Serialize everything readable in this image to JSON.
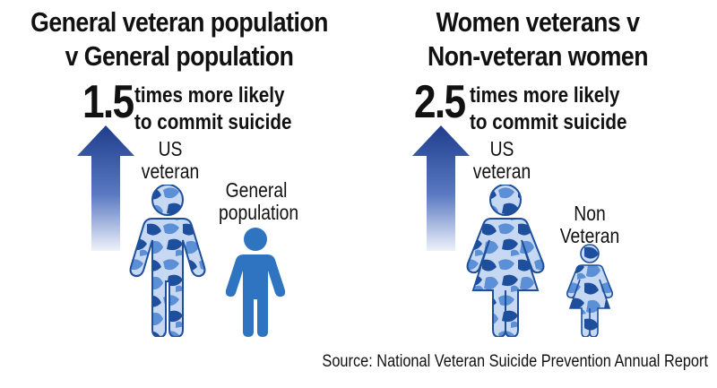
{
  "left_panel": {
    "title_line1": "General veteran population",
    "title_line2": "v General population",
    "multiplier": "1.5",
    "likely_line1": "times more likely",
    "likely_line2": "to commit suicide",
    "figure1_label_line1": "US",
    "figure1_label_line2": "veteran",
    "figure2_label_line1": "General",
    "figure2_label_line2": "population"
  },
  "right_panel": {
    "title_line1": "Women veterans v",
    "title_line2": "Non-veteran women",
    "multiplier": "2.5",
    "likely_line1": "times more likely",
    "likely_line2": "to commit suicide",
    "figure1_label_line1": "US",
    "figure1_label_line2": "veteran",
    "figure2_label_line1": "Non",
    "figure2_label_line2": "Veteran"
  },
  "source": "Source: National Veteran Suicide Prevention Annual Report",
  "colors": {
    "arrow_dark": "#1f3d8c",
    "arrow_light": "#e6ecf8",
    "camo_light": "#c6d8f2",
    "camo_mid": "#5b8fd6",
    "camo_dark": "#1d4f9c",
    "plain_figure": "#2f74c0"
  },
  "icons": [
    "up-arrow-icon",
    "camo-man-icon",
    "plain-man-icon",
    "camo-woman-icon",
    "camo-girl-icon"
  ]
}
